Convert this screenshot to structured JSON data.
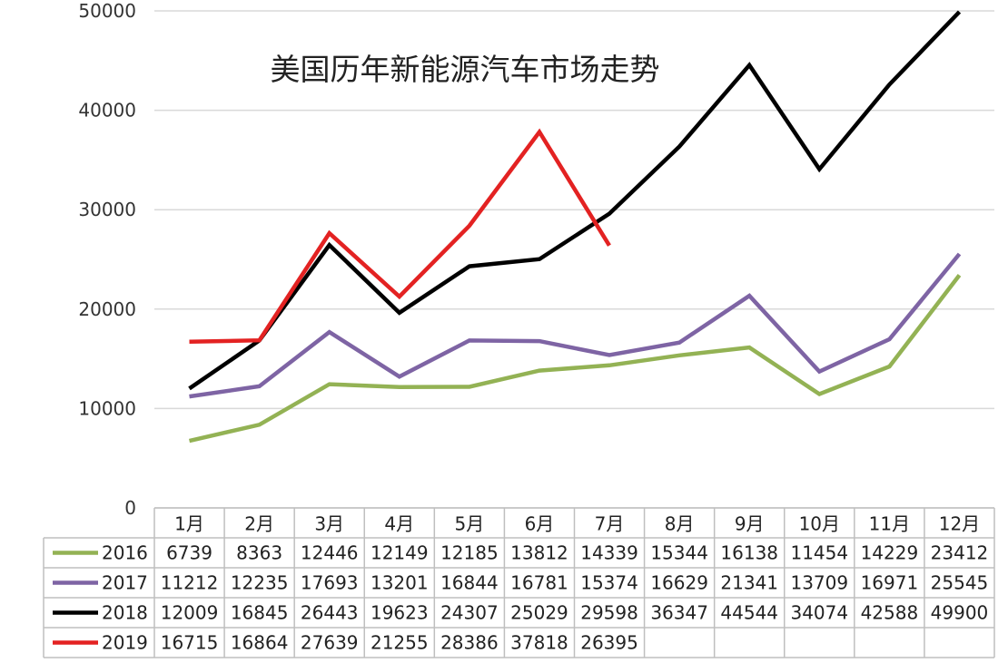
{
  "chart_data": {
    "type": "line",
    "title": "美国历年新能源汽车市场走势",
    "categories": [
      "1月",
      "2月",
      "3月",
      "4月",
      "5月",
      "6月",
      "7月",
      "8月",
      "9月",
      "10月",
      "11月",
      "12月"
    ],
    "ylim": [
      0,
      50000
    ],
    "yticks": [
      "0",
      "10000",
      "20000",
      "30000",
      "40000",
      "50000"
    ],
    "grid": true,
    "legend": "data-table-left",
    "series": [
      {
        "name": "2016",
        "color": "#93b254",
        "values": [
          6739,
          8363,
          12446,
          12149,
          12185,
          13812,
          14339,
          15344,
          16138,
          11454,
          14229,
          23412
        ]
      },
      {
        "name": "2017",
        "color": "#7e64a4",
        "values": [
          11212,
          12235,
          17693,
          13201,
          16844,
          16781,
          15374,
          16629,
          21341,
          13709,
          16971,
          25545
        ]
      },
      {
        "name": "2018",
        "color": "#000000",
        "values": [
          12009,
          16845,
          26443,
          19623,
          24307,
          25029,
          29598,
          36347,
          44544,
          34074,
          42588,
          49900
        ]
      },
      {
        "name": "2019",
        "color": "#e32222",
        "values": [
          16715,
          16864,
          27639,
          21255,
          28386,
          37818,
          26395,
          null,
          null,
          null,
          null,
          null
        ]
      }
    ]
  }
}
